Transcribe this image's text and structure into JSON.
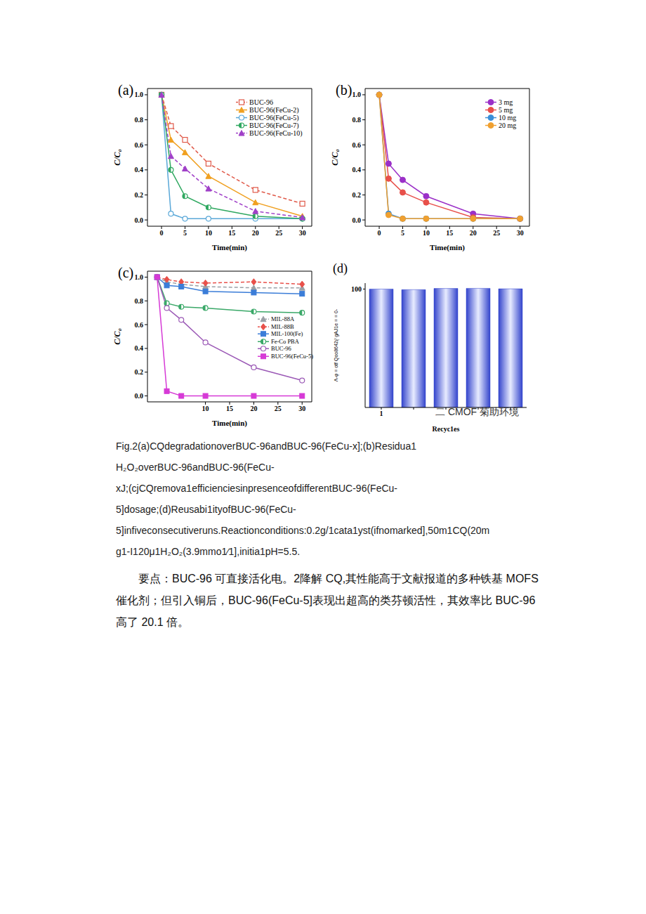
{
  "chart_data": [
    {
      "type": "line",
      "title": "(a)",
      "x_label": "Time(min)",
      "y_label": "C/C₀",
      "xlim": [
        -3,
        32
      ],
      "xticks": [
        0,
        5,
        10,
        15,
        20,
        25,
        30
      ],
      "ylim": [
        -0.05,
        1.05
      ],
      "yticks": [
        {
          "value": 0,
          "label": "0.0"
        },
        0.2,
        0.4,
        0.6,
        0.8,
        {
          "value": 1,
          "label": "1.0"
        }
      ],
      "x": [
        0,
        2,
        5,
        10,
        20,
        30
      ],
      "series": [
        {
          "name": "BUC-96",
          "color": "#e05a4a",
          "marker": "square_open",
          "line_style": "dashed",
          "values": [
            1,
            0.75,
            0.64,
            0.45,
            0.24,
            0.13
          ]
        },
        {
          "name": "BUC-96(FeCu-2)",
          "color": "#f0a020",
          "marker": "triangle",
          "line_style": "solid",
          "values": [
            1,
            0.64,
            0.54,
            0.35,
            0.14,
            0.03
          ]
        },
        {
          "name": "BUC-96(FeCu-5)",
          "color": "#5aa8d8",
          "marker": "circle_open",
          "line_style": "solid",
          "values": [
            1,
            0.05,
            0.01,
            0.01,
            0.01,
            0.01
          ]
        },
        {
          "name": "BUC-96(FeCu-7)",
          "color": "#2fa860",
          "marker": "half_circle",
          "line_style": "solid",
          "values": [
            1,
            0.4,
            0.19,
            0.1,
            0.03,
            0.01
          ]
        },
        {
          "name": "BUC-96(FeCu-10)",
          "color": "#a040c8",
          "marker": "triangle",
          "line_style": "dashed",
          "values": [
            1,
            0.51,
            0.41,
            0.25,
            0.07,
            0.02
          ]
        }
      ]
    },
    {
      "type": "line",
      "title": "(b)",
      "x_label": "Time(min)",
      "y_label": "C/C₀",
      "xlim": [
        -3,
        32
      ],
      "xticks": [
        0,
        5,
        10,
        15,
        20,
        25,
        30
      ],
      "ylim": [
        -0.05,
        1.05
      ],
      "yticks": [
        {
          "value": 0,
          "label": "0.0"
        },
        0.2,
        0.4,
        0.6,
        0.8,
        {
          "value": 1,
          "label": "1.0"
        }
      ],
      "x": [
        0,
        2,
        5,
        10,
        20,
        30
      ],
      "series": [
        {
          "name": "3 mg",
          "color": "#9b30c8",
          "marker": "circle",
          "line_style": "solid",
          "values": [
            1,
            0.45,
            0.32,
            0.19,
            0.05,
            0.01
          ]
        },
        {
          "name": "5 mg",
          "color": "#e8504a",
          "marker": "circle",
          "line_style": "solid",
          "values": [
            1,
            0.33,
            0.22,
            0.14,
            0.02,
            0.01
          ]
        },
        {
          "name": "10 mg",
          "color": "#3b8fd8",
          "marker": "circle",
          "line_style": "solid",
          "values": [
            1,
            0.05,
            0.01,
            0.01,
            0.01,
            0.01
          ]
        },
        {
          "name": "20 mg",
          "color": "#f0a030",
          "marker": "circle",
          "line_style": "solid",
          "values": [
            1,
            0.04,
            0.01,
            0.01,
            0.01,
            0.01
          ]
        }
      ]
    },
    {
      "type": "line",
      "title": "(c)",
      "x_label": "Time(min)",
      "y_label": "C/C₀",
      "xlim": [
        -2,
        32
      ],
      "xticks": [
        10,
        15,
        20,
        25,
        30
      ],
      "ylim": [
        -0.05,
        1.05
      ],
      "yticks": [
        {
          "value": 0,
          "label": "0.0"
        },
        0.2,
        0.4,
        0.6,
        0.8,
        {
          "value": 1,
          "label": "1.0"
        }
      ],
      "x": [
        0,
        2,
        5,
        10,
        20,
        30
      ],
      "series": [
        {
          "name": "MIL-88A",
          "color": "#9aa0a6",
          "marker": "triangle",
          "line_style": "dashed",
          "values": [
            1,
            0.96,
            0.94,
            0.92,
            0.91,
            0.91
          ]
        },
        {
          "name": "MIL-88B",
          "color": "#e8504a",
          "marker": "diamond",
          "line_style": "dashed",
          "values": [
            1,
            0.98,
            0.96,
            0.95,
            0.96,
            0.94
          ]
        },
        {
          "name": "MIL-100(Fe)",
          "color": "#3b7dd8",
          "marker": "square",
          "line_style": "solid",
          "values": [
            1,
            0.93,
            0.92,
            0.88,
            0.87,
            0.86
          ]
        },
        {
          "name": "Fe-Co PBA",
          "color": "#3aa868",
          "marker": "half_circle",
          "line_style": "solid",
          "values": [
            1,
            0.78,
            0.75,
            0.74,
            0.71,
            0.7
          ]
        },
        {
          "name": "BUC-96",
          "color": "#9b59b6",
          "marker": "circle_open",
          "line_style": "solid",
          "values": [
            1,
            0.74,
            0.64,
            0.45,
            0.24,
            0.13
          ]
        },
        {
          "name": "BUC-96(FeCu-5)",
          "color": "#d63ad6",
          "marker": "square",
          "line_style": "solid",
          "values": [
            1,
            0.04,
            0,
            0,
            0,
            0
          ]
        }
      ]
    },
    {
      "type": "bar",
      "title": "(d)",
      "x_label": "Recyc1es",
      "y_label": "Λ-φ = otf Qoo8642(∕ gAJ1e = = 0-",
      "categories": [
        "1",
        null,
        null,
        null,
        null
      ],
      "values": [
        100,
        99.5,
        100.5,
        100.6,
        100.2
      ],
      "color": "#3344cc",
      "ylim": [
        0,
        105
      ],
      "yticks": [
        100
      ],
      "annotations": [
        "二 CMOF 菊助环境"
      ]
    }
  ],
  "caption": [
    "Fig.2(a)CQdegradationoverBUC-96andBUC-96(FeCu-x];(b)Residua1",
    "H₂O₂overBUC-96andBUC-96(FeCu-",
    "xJ;(cjCQremova1efficienciesinpresenceofdifferentBUC-96(FeCu-",
    "5]dosage;(d)Reusabi1ityofBUC-96(FeCu-",
    "5]infiveconsecutiveruns.Reactionconditions:0.2g/1cata1yst(ifnomarked],50m1CQ(20m",
    "g1-I120μ1H₂O₂(3.9mmo1∕1],initia1pH=5.5."
  ],
  "paragraph": [
    "要点：BUC-96 可直接活化电。2降解 CQ,其性能高于文献报道的多种铁基 MOFS",
    "催化剂；但引入铜后，BUC-96(FeCu-5]表现出超高的类芬顿活性，其效率比 BUC-96",
    "高了 20.1 倍。"
  ]
}
